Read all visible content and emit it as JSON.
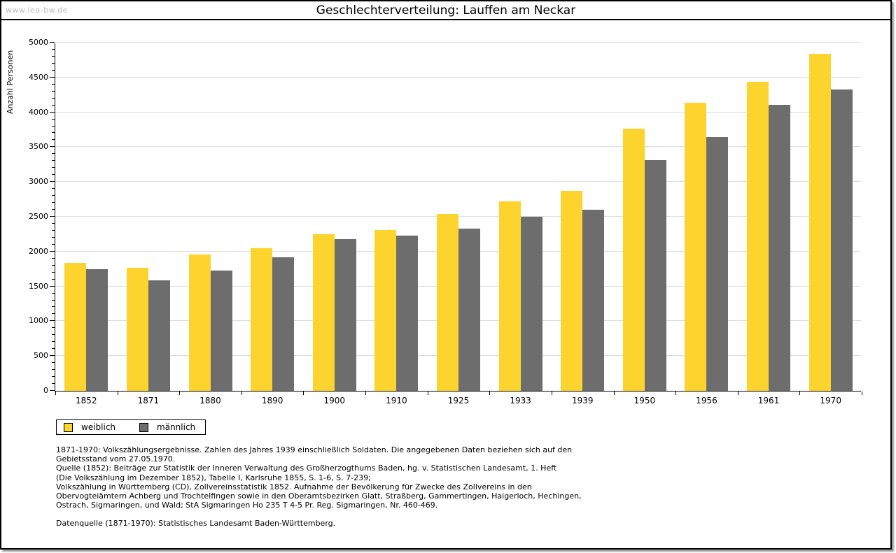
{
  "header": {
    "watermark": "www.leo-bw.de",
    "title": "Geschlechterverteilung: Lauffen am Neckar"
  },
  "chart_data": {
    "type": "bar",
    "title": "Geschlechterverteilung: Lauffen am Neckar",
    "xlabel": "",
    "ylabel": "Anzahl Personen",
    "categories": [
      "1852",
      "1871",
      "1880",
      "1890",
      "1900",
      "1910",
      "1925",
      "1933",
      "1939",
      "1950",
      "1956",
      "1961",
      "1970"
    ],
    "series": [
      {
        "name": "weiblich",
        "color": "#FDD42E",
        "values": [
          1840,
          1770,
          1960,
          2050,
          2250,
          2310,
          2540,
          2720,
          2870,
          3770,
          4140,
          4440,
          4840
        ]
      },
      {
        "name": "männlich",
        "color": "#6D6D6D",
        "values": [
          1750,
          1590,
          1730,
          1920,
          2180,
          2230,
          2330,
          2500,
          2600,
          3310,
          3640,
          4110,
          4330
        ]
      }
    ],
    "ylim": [
      0,
      5000
    ],
    "ytick_step": 500,
    "minor_tick_step": 100,
    "grid": true,
    "gridline_color": "#dddddd",
    "legend_position": "bottom-left"
  },
  "legend": {
    "items": [
      {
        "label": "weiblich",
        "color": "#FDD42E"
      },
      {
        "label": "männlich",
        "color": "#6D6D6D"
      }
    ]
  },
  "footnotes": {
    "lines": [
      "1871-1970: Volkszählungsergebnisse. Zahlen des Jahres 1939 einschließlich Soldaten. Die angegebenen Daten beziehen sich auf den",
      "Gebietsstand vom 27.05.1970.",
      "Quelle (1852): Beiträge zur Statistik der Inneren Verwaltung des Großherzogthums Baden, hg. v. Statistischen Landesamt, 1. Heft",
      "(Die Volkszählung im Dezember 1852), Tabelle I, Karlsruhe 1855, S. 1-6, S. 7-239;",
      "Volkszählung in Württemberg (CD), Zollvereinsstatistik 1852. Aufnahme der Bevölkerung für Zwecke des Zollvereins in den",
      "Obervogteiämtern Achberg und Trochtelfingen sowie in den Oberamtsbezirken Glatt, Straßberg, Gammertingen, Haigerloch, Hechingen,",
      "Ostrach, Sigmaringen, und Wald; StA Sigmaringen Ho 235 T 4-5 Pr. Reg. Sigmaringen, Nr. 460-469."
    ],
    "source_line": "Datenquelle (1871-1970): Statistisches Landesamt Baden-Württemberg."
  },
  "colors": {
    "female_bar": "#FDD42E",
    "male_bar": "#6D6D6D",
    "gridline": "#dddddd",
    "watermark": "#bcbcbc",
    "frame_border": "#000000",
    "frame_shadow": "#999999"
  }
}
